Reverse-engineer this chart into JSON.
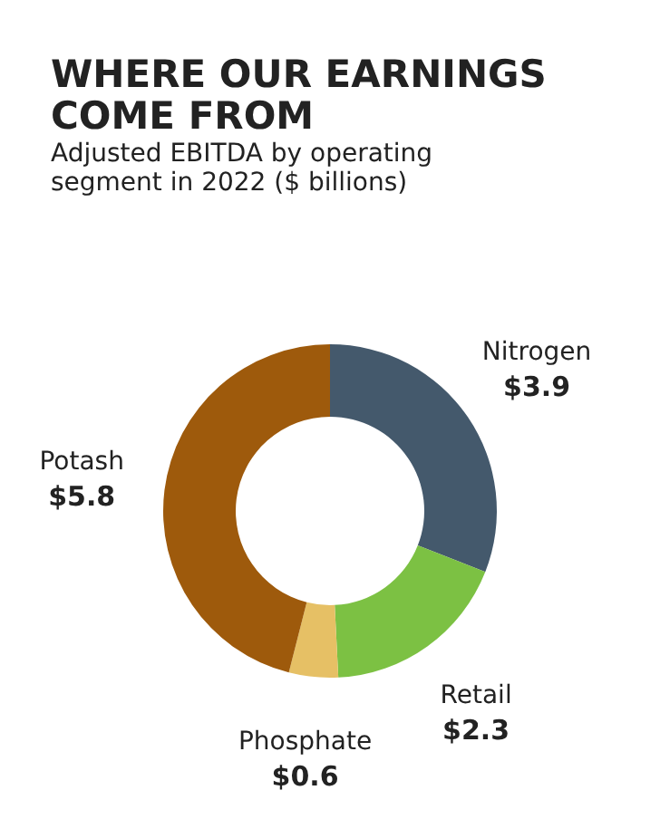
{
  "chart_data": {
    "type": "donut",
    "title": "WHERE OUR EARNINGS COME FROM",
    "subtitle": "Adjusted EBITDA by operating segment in 2022 ($ billions)",
    "categories": [
      "Nitrogen",
      "Retail",
      "Phosphate",
      "Potash"
    ],
    "values": [
      3.9,
      2.3,
      0.6,
      5.8
    ],
    "colors": [
      "#44596c",
      "#7cc143",
      "#e6c065",
      "#9e5a0c"
    ],
    "value_labels": [
      "$3.9",
      "$2.3",
      "$0.6",
      "$5.8"
    ],
    "legend": false
  }
}
